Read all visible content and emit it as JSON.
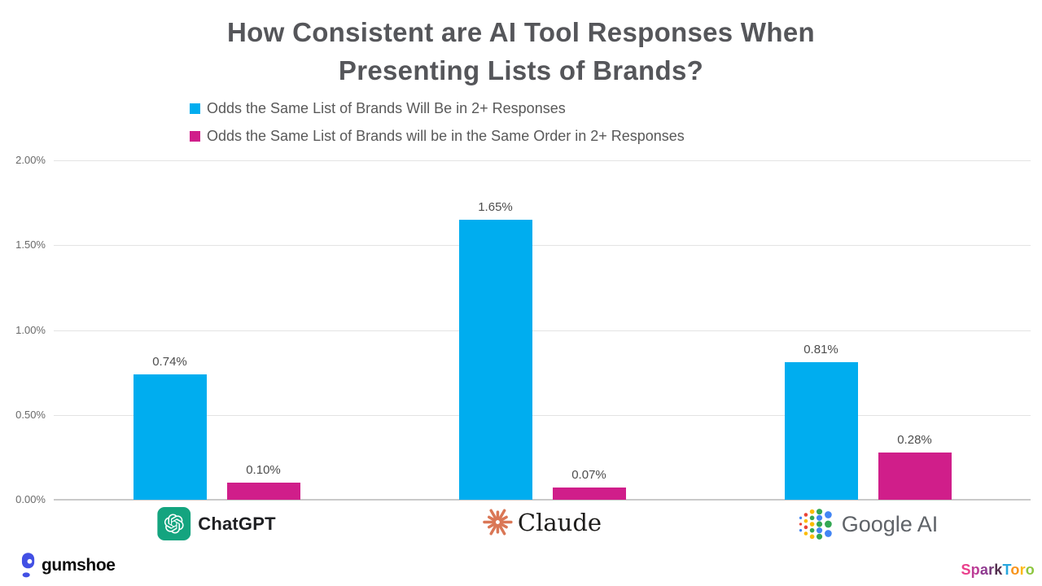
{
  "title": {
    "line1": "How Consistent are AI Tool Responses When",
    "line2": "Presenting Lists of Brands?"
  },
  "legend": [
    {
      "label": "Odds the Same List of Brands Will Be in 2+ Responses",
      "color": "#00ADEF"
    },
    {
      "label": "Odds the Same List of Brands will be in the Same Order in 2+ Responses",
      "color": "#D01E8A"
    }
  ],
  "chart_data": {
    "type": "bar",
    "categories": [
      "ChatGPT",
      "Claude",
      "Google AI"
    ],
    "series": [
      {
        "name": "Odds the Same List of Brands Will Be in 2+ Responses",
        "color": "#00ADEF",
        "values": [
          0.74,
          1.65,
          0.81
        ],
        "value_labels": [
          "0.74%",
          "1.65%",
          "0.81%"
        ]
      },
      {
        "name": "Odds the Same List of Brands will be in the Same Order in 2+ Responses",
        "color": "#D01E8A",
        "values": [
          0.1,
          0.07,
          0.28
        ],
        "value_labels": [
          "0.10%",
          "0.07%",
          "0.28%"
        ]
      }
    ],
    "title": "How Consistent are AI Tool Responses When Presenting Lists of Brands?",
    "xlabel": "",
    "ylabel": "",
    "ylim": [
      0,
      2
    ],
    "y_ticks": [
      "2.00%",
      "1.50%",
      "1.00%",
      "0.50%",
      "0.00%"
    ],
    "grid": true,
    "legend_position": "top"
  },
  "x_axis_logos": [
    {
      "label": "ChatGPT"
    },
    {
      "label": "Claude"
    },
    {
      "label": "Google AI"
    }
  ],
  "footer": {
    "gumshoe_label": "gumshoe",
    "sparktoro_letters": [
      {
        "ch": "S",
        "color": "#EA3E8B"
      },
      {
        "ch": "p",
        "color": "#BC3C96"
      },
      {
        "ch": "a",
        "color": "#8F3A90"
      },
      {
        "ch": "r",
        "color": "#6F3472"
      },
      {
        "ch": "k",
        "color": "#53304F"
      },
      {
        "ch": "T",
        "color": "#28A6DE"
      },
      {
        "ch": "o",
        "color": "#F7941D"
      },
      {
        "ch": "r",
        "color": "#FDB913"
      },
      {
        "ch": "o",
        "color": "#8DC63F"
      }
    ]
  }
}
